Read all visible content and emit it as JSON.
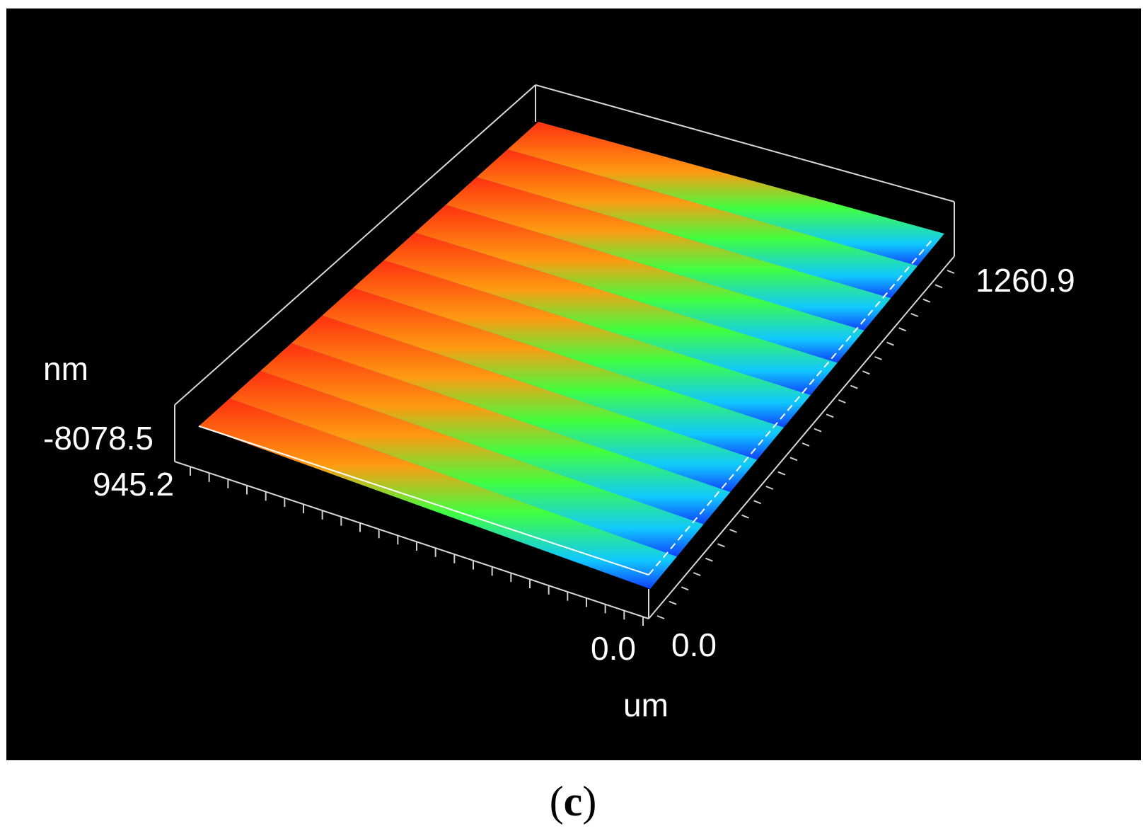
{
  "image": {
    "description_free": true
  },
  "plot": {
    "z_unit": "nm",
    "xy_unit": "um",
    "z_max_label": "-8078.5",
    "z_min_label": "945.2",
    "x_max_label": "1260.9",
    "x_origin_label": "0.0",
    "y_origin_label": "0.0",
    "colors": {
      "background": "#000000",
      "frame": "#ffffff",
      "low": "#1060ff",
      "mid": "#20ff60",
      "high": "#ff3010"
    }
  },
  "caption": {
    "open": "(",
    "letter": "c",
    "close": ")"
  }
}
